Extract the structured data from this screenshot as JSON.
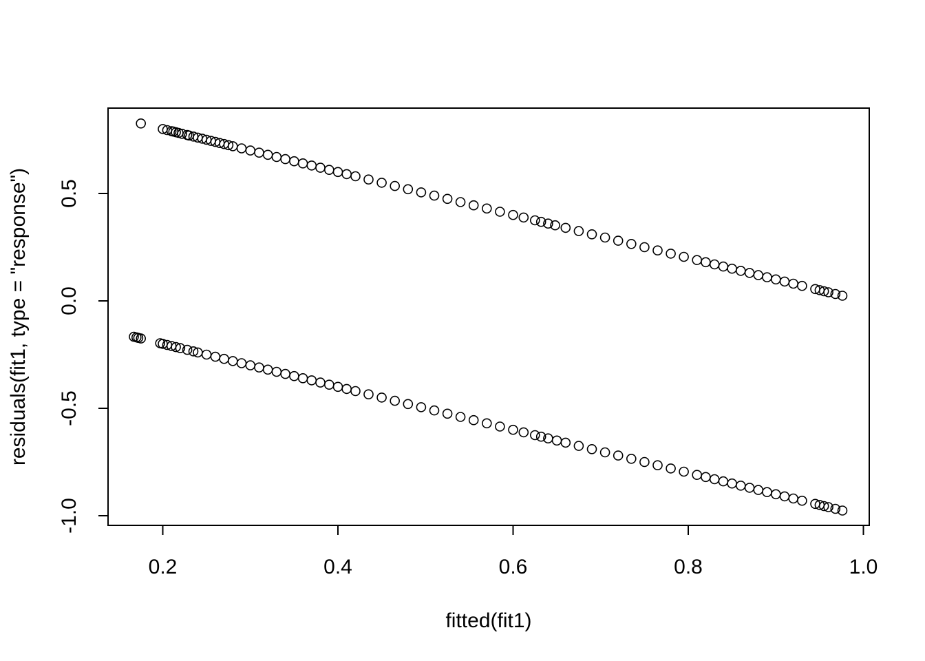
{
  "chart_data": {
    "type": "scatter",
    "title": "",
    "xlabel": "fitted(fit1)",
    "ylabel": "residuals(fit1, type = \"response\")",
    "xlim": [
      0.167,
      0.976
    ],
    "ylim": [
      -0.976,
      0.826
    ],
    "x_ticks": [
      {
        "value": 0.2,
        "label": "0.2"
      },
      {
        "value": 0.4,
        "label": "0.4"
      },
      {
        "value": 0.6,
        "label": "0.6"
      },
      {
        "value": 0.8,
        "label": "0.8"
      },
      {
        "value": 1.0,
        "label": "1.0"
      }
    ],
    "y_ticks": [
      {
        "value": -1.0,
        "label": "-1.0"
      },
      {
        "value": -0.5,
        "label": "-0.5"
      },
      {
        "value": 0.0,
        "label": "0.0"
      },
      {
        "value": 0.5,
        "label": "0.5"
      }
    ],
    "marker": "open-circle",
    "grid": false,
    "box": true,
    "series": [
      {
        "description_values": "positive residual band (y = 1 - x)",
        "points": [
          [
            0.175,
            0.826
          ],
          [
            0.2,
            0.8
          ],
          [
            0.205,
            0.795
          ],
          [
            0.21,
            0.79
          ],
          [
            0.212,
            0.788
          ],
          [
            0.215,
            0.785
          ],
          [
            0.218,
            0.782
          ],
          [
            0.222,
            0.778
          ],
          [
            0.228,
            0.772
          ],
          [
            0.23,
            0.77
          ],
          [
            0.235,
            0.765
          ],
          [
            0.24,
            0.76
          ],
          [
            0.245,
            0.755
          ],
          [
            0.25,
            0.75
          ],
          [
            0.255,
            0.745
          ],
          [
            0.26,
            0.74
          ],
          [
            0.265,
            0.735
          ],
          [
            0.27,
            0.73
          ],
          [
            0.275,
            0.725
          ],
          [
            0.28,
            0.72
          ],
          [
            0.29,
            0.71
          ],
          [
            0.3,
            0.7
          ],
          [
            0.31,
            0.69
          ],
          [
            0.32,
            0.68
          ],
          [
            0.33,
            0.67
          ],
          [
            0.34,
            0.66
          ],
          [
            0.35,
            0.65
          ],
          [
            0.36,
            0.64
          ],
          [
            0.37,
            0.63
          ],
          [
            0.38,
            0.62
          ],
          [
            0.39,
            0.61
          ],
          [
            0.4,
            0.6
          ],
          [
            0.41,
            0.59
          ],
          [
            0.42,
            0.58
          ],
          [
            0.435,
            0.565
          ],
          [
            0.45,
            0.55
          ],
          [
            0.465,
            0.535
          ],
          [
            0.48,
            0.52
          ],
          [
            0.495,
            0.505
          ],
          [
            0.51,
            0.49
          ],
          [
            0.525,
            0.475
          ],
          [
            0.54,
            0.46
          ],
          [
            0.555,
            0.445
          ],
          [
            0.57,
            0.43
          ],
          [
            0.585,
            0.415
          ],
          [
            0.6,
            0.4
          ],
          [
            0.612,
            0.388
          ],
          [
            0.625,
            0.375
          ],
          [
            0.632,
            0.368
          ],
          [
            0.64,
            0.36
          ],
          [
            0.648,
            0.352
          ],
          [
            0.66,
            0.34
          ],
          [
            0.675,
            0.325
          ],
          [
            0.69,
            0.31
          ],
          [
            0.705,
            0.295
          ],
          [
            0.72,
            0.28
          ],
          [
            0.735,
            0.265
          ],
          [
            0.75,
            0.25
          ],
          [
            0.765,
            0.235
          ],
          [
            0.78,
            0.22
          ],
          [
            0.795,
            0.205
          ],
          [
            0.81,
            0.19
          ],
          [
            0.82,
            0.18
          ],
          [
            0.83,
            0.17
          ],
          [
            0.84,
            0.16
          ],
          [
            0.85,
            0.15
          ],
          [
            0.86,
            0.14
          ],
          [
            0.87,
            0.13
          ],
          [
            0.88,
            0.12
          ],
          [
            0.89,
            0.11
          ],
          [
            0.9,
            0.1
          ],
          [
            0.91,
            0.09
          ],
          [
            0.92,
            0.08
          ],
          [
            0.93,
            0.07
          ],
          [
            0.945,
            0.055
          ],
          [
            0.95,
            0.05
          ],
          [
            0.955,
            0.045
          ],
          [
            0.96,
            0.04
          ],
          [
            0.968,
            0.032
          ],
          [
            0.976,
            0.024
          ]
        ]
      },
      {
        "description_values": "negative residual band (y = -x)",
        "points": [
          [
            0.167,
            -0.167
          ],
          [
            0.17,
            -0.17
          ],
          [
            0.172,
            -0.172
          ],
          [
            0.175,
            -0.175
          ],
          [
            0.197,
            -0.197
          ],
          [
            0.2,
            -0.2
          ],
          [
            0.205,
            -0.205
          ],
          [
            0.21,
            -0.21
          ],
          [
            0.215,
            -0.215
          ],
          [
            0.22,
            -0.22
          ],
          [
            0.228,
            -0.228
          ],
          [
            0.235,
            -0.235
          ],
          [
            0.24,
            -0.24
          ],
          [
            0.25,
            -0.25
          ],
          [
            0.26,
            -0.26
          ],
          [
            0.27,
            -0.27
          ],
          [
            0.28,
            -0.28
          ],
          [
            0.29,
            -0.29
          ],
          [
            0.3,
            -0.3
          ],
          [
            0.31,
            -0.31
          ],
          [
            0.32,
            -0.32
          ],
          [
            0.33,
            -0.33
          ],
          [
            0.34,
            -0.34
          ],
          [
            0.35,
            -0.35
          ],
          [
            0.36,
            -0.36
          ],
          [
            0.37,
            -0.37
          ],
          [
            0.38,
            -0.38
          ],
          [
            0.39,
            -0.39
          ],
          [
            0.4,
            -0.4
          ],
          [
            0.41,
            -0.41
          ],
          [
            0.42,
            -0.42
          ],
          [
            0.435,
            -0.435
          ],
          [
            0.45,
            -0.45
          ],
          [
            0.465,
            -0.465
          ],
          [
            0.48,
            -0.48
          ],
          [
            0.495,
            -0.495
          ],
          [
            0.51,
            -0.51
          ],
          [
            0.525,
            -0.525
          ],
          [
            0.54,
            -0.54
          ],
          [
            0.555,
            -0.555
          ],
          [
            0.57,
            -0.57
          ],
          [
            0.585,
            -0.585
          ],
          [
            0.6,
            -0.6
          ],
          [
            0.612,
            -0.612
          ],
          [
            0.625,
            -0.625
          ],
          [
            0.632,
            -0.632
          ],
          [
            0.64,
            -0.64
          ],
          [
            0.65,
            -0.65
          ],
          [
            0.66,
            -0.66
          ],
          [
            0.675,
            -0.675
          ],
          [
            0.69,
            -0.69
          ],
          [
            0.705,
            -0.705
          ],
          [
            0.72,
            -0.72
          ],
          [
            0.735,
            -0.735
          ],
          [
            0.75,
            -0.75
          ],
          [
            0.765,
            -0.765
          ],
          [
            0.78,
            -0.78
          ],
          [
            0.795,
            -0.795
          ],
          [
            0.81,
            -0.81
          ],
          [
            0.82,
            -0.82
          ],
          [
            0.83,
            -0.83
          ],
          [
            0.84,
            -0.84
          ],
          [
            0.85,
            -0.85
          ],
          [
            0.86,
            -0.86
          ],
          [
            0.87,
            -0.87
          ],
          [
            0.88,
            -0.88
          ],
          [
            0.89,
            -0.89
          ],
          [
            0.9,
            -0.9
          ],
          [
            0.91,
            -0.91
          ],
          [
            0.92,
            -0.92
          ],
          [
            0.93,
            -0.93
          ],
          [
            0.945,
            -0.945
          ],
          [
            0.95,
            -0.95
          ],
          [
            0.955,
            -0.955
          ],
          [
            0.96,
            -0.96
          ],
          [
            0.968,
            -0.968
          ],
          [
            0.976,
            -0.976
          ]
        ]
      }
    ]
  }
}
